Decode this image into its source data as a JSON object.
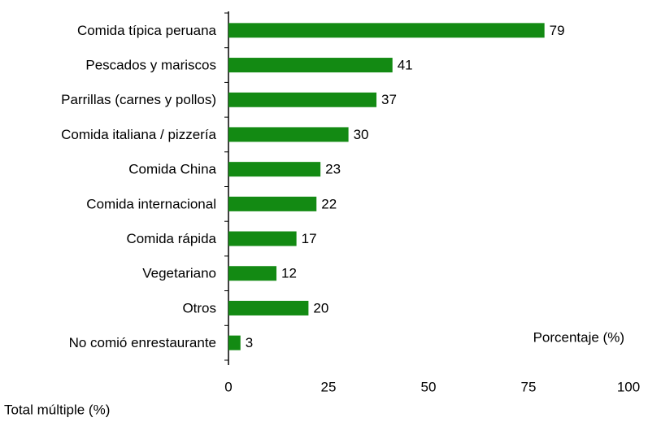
{
  "chart_data": {
    "type": "bar",
    "orientation": "horizontal",
    "categories": [
      "Comida típica peruana",
      "Pescados y mariscos",
      "Parrillas (carnes y pollos)",
      "Comida italiana / pizzería",
      "Comida China",
      "Comida internacional",
      "Comida rápida",
      "Vegetariano",
      "Otros",
      "No comió enrestaurante"
    ],
    "values": [
      79,
      41,
      37,
      30,
      23,
      22,
      17,
      12,
      20,
      3
    ],
    "color": "#138a13",
    "xlim": [
      0,
      100
    ],
    "xticks": [
      0,
      25,
      50,
      75,
      100
    ],
    "xlabel": "Porcentaje (%)",
    "note": "Total múltiple (%)",
    "grid": false
  }
}
